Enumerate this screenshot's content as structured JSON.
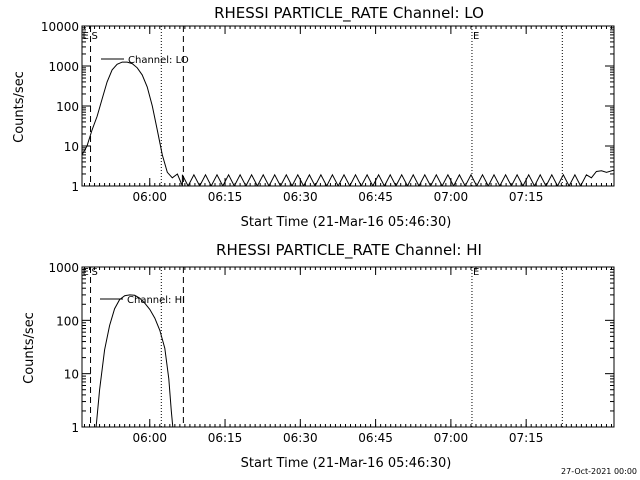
{
  "colors": {
    "background": "#ffffff",
    "foreground": "#000000"
  },
  "footer": {
    "timestamp": "27-Oct-2021 00:00"
  },
  "chart_data": [
    {
      "type": "line",
      "title": "RHESSI PARTICLE_RATE Channel: LO",
      "xlabel": "Start Time (21-Mar-16 05:46:30)",
      "ylabel": "Counts/sec",
      "yscale": "log",
      "ylim": [
        1,
        10000
      ],
      "yticks": [
        1,
        10,
        100,
        1000,
        10000
      ],
      "ytick_labels": [
        "1",
        "10",
        "100",
        "1000",
        "10000"
      ],
      "xlim_minutes": [
        0,
        106
      ],
      "xticks": [
        13.5,
        28.5,
        43.5,
        58.5,
        73.5,
        88.5
      ],
      "xtick_labels": [
        "06:00",
        "06:15",
        "06:30",
        "06:45",
        "07:00",
        "07:15"
      ],
      "dashed_markers": [
        1.7,
        20.2
      ],
      "dotted_markers": [
        15.8,
        77.7,
        95.7
      ],
      "annotations": [
        {
          "text": "E",
          "x": 0.1,
          "y": 6000
        },
        {
          "text": "S",
          "x": 1.9,
          "y": 6000
        },
        {
          "text": "E",
          "x": 77.9,
          "y": 6000
        }
      ],
      "legend": {
        "label": "Channel: LO",
        "position": "top-left"
      },
      "series": [
        {
          "name": "Channel: LO",
          "profile": {
            "x": [
              0,
              1,
              2,
              3,
              4,
              5,
              6,
              7,
              8,
              9,
              10,
              11,
              12,
              13,
              14,
              15,
              16,
              17,
              18,
              19,
              20
            ],
            "y": [
              6,
              10,
              25,
              55,
              150,
              400,
              800,
              1100,
              1250,
              1250,
              1150,
              900,
              600,
              300,
              100,
              25,
              6,
              2.2,
              1.6,
              2,
              1
            ]
          },
          "noise": {
            "x_start": 20,
            "x_end": 101.5,
            "spacing": 1.15,
            "low": 1,
            "high": 1.9
          },
          "tail": {
            "x": [
              101.5,
              102.5,
              103.5,
              104.5,
              106
            ],
            "y": [
              1.6,
              2.3,
              2.4,
              2.2,
              2.5
            ]
          }
        }
      ]
    },
    {
      "type": "line",
      "title": "RHESSI PARTICLE_RATE Channel: HI",
      "xlabel": "Start Time (21-Mar-16 05:46:30)",
      "ylabel": "Counts/sec",
      "yscale": "log",
      "ylim": [
        1,
        1000
      ],
      "yticks": [
        1,
        10,
        100,
        1000
      ],
      "ytick_labels": [
        "1",
        "10",
        "100",
        "1000"
      ],
      "xlim_minutes": [
        0,
        106
      ],
      "xticks": [
        13.5,
        28.5,
        43.5,
        58.5,
        73.5,
        88.5
      ],
      "xtick_labels": [
        "06:00",
        "06:15",
        "06:30",
        "06:45",
        "07:00",
        "07:15"
      ],
      "dashed_markers": [
        1.7,
        20.2
      ],
      "dotted_markers": [
        15.8,
        77.7,
        95.7
      ],
      "annotations": [
        {
          "text": "E",
          "x": 0.1,
          "y": 850
        },
        {
          "text": "S",
          "x": 1.9,
          "y": 850
        },
        {
          "text": "E",
          "x": 77.9,
          "y": 850
        }
      ],
      "legend": {
        "label": "Channel: HI",
        "position": "top-left"
      },
      "series": [
        {
          "name": "Channel: HI",
          "profile": {
            "x": [
              2.8,
              3.5,
              4.5,
              5.5,
              6.5,
              7.5,
              8.5,
              9.5,
              10.5,
              11.5,
              12.5,
              13.5,
              14.5,
              15.5,
              16.5,
              17.3,
              17.8,
              18.1
            ],
            "y": [
              1,
              5,
              28,
              80,
              165,
              245,
              290,
              300,
              295,
              260,
              210,
              160,
              110,
              65,
              30,
              8,
              2,
              1
            ]
          }
        }
      ]
    }
  ]
}
